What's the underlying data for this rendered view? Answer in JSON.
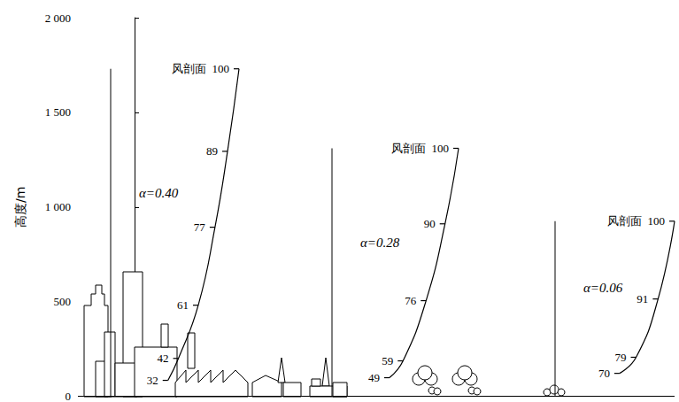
{
  "chart_data": {
    "type": "line",
    "ylabel": "高度/m",
    "ylim": [
      0,
      2000
    ],
    "yticks": [
      0,
      500,
      {
        "value": 1000,
        "label": "1 000"
      },
      {
        "value": 1500,
        "label": "1 500"
      },
      {
        "value": 2000,
        "label": "2 000"
      }
    ],
    "tick_labels": "y",
    "data_labels": true,
    "color": "#000000",
    "series": [
      {
        "name": "风剖面",
        "annotation": "α=0.40",
        "heights": [
          84,
          200,
          481,
          893,
          1294,
          1730
        ],
        "values": [
          32,
          42,
          61,
          77,
          89,
          100
        ]
      },
      {
        "name": "风剖面",
        "annotation": "α=0.28",
        "heights": [
          98,
          187,
          505,
          911,
          1310
        ],
        "values": [
          49,
          59,
          76,
          90,
          100
        ]
      },
      {
        "name": "风剖面",
        "annotation": "α=0.06",
        "heights": [
          121,
          206,
          514,
          925
        ],
        "values": [
          70,
          79,
          91,
          100
        ]
      }
    ]
  }
}
